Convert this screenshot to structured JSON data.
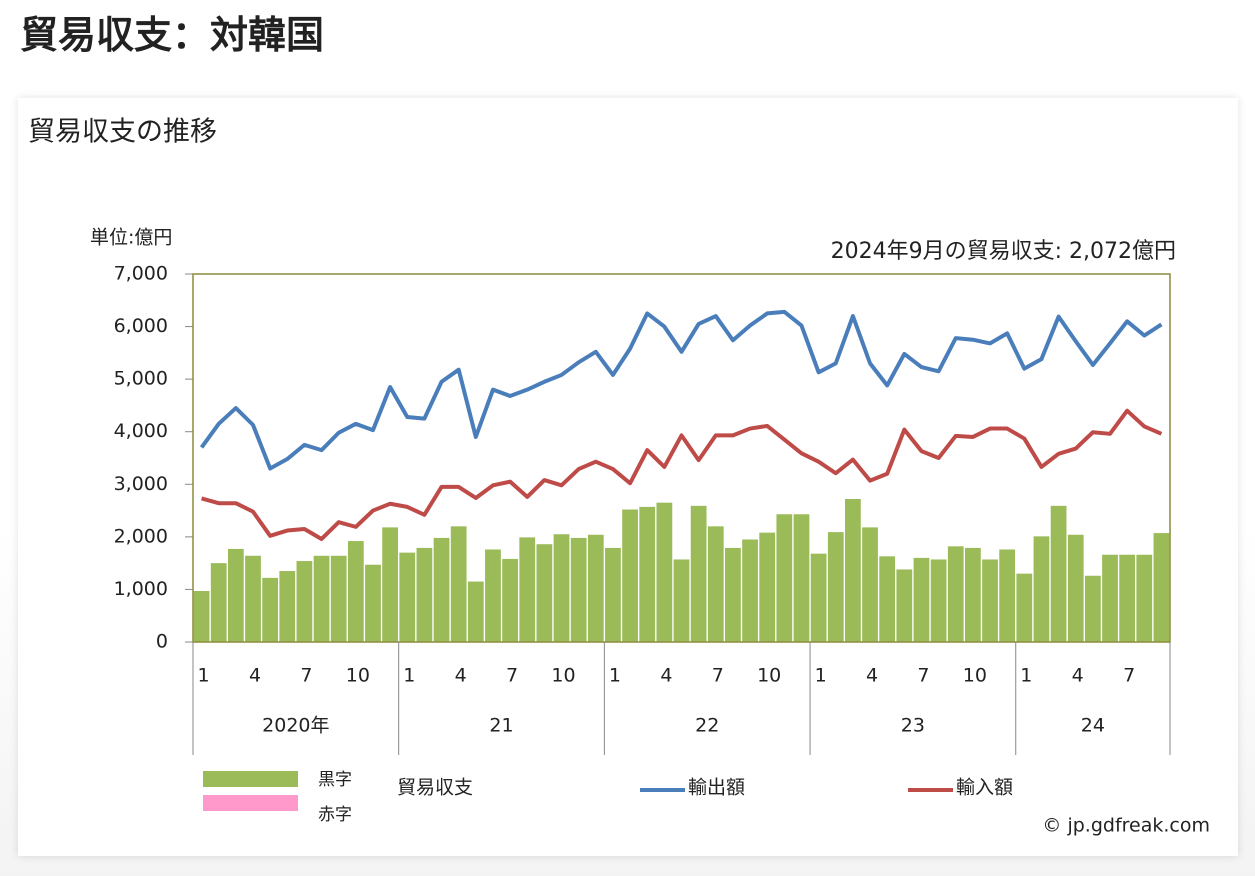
{
  "page_title": "貿易収支：対韓国",
  "chart_data": {
    "type": "combo",
    "title": "貿易収支の推移",
    "unit_label": "単位:億円",
    "annotation": "2024年9月の貿易収支: 2,072億円",
    "credit": "© jp.gdfreak.com",
    "categories": [
      "1",
      null,
      null,
      "4",
      null,
      null,
      "7",
      null,
      null,
      "10",
      null,
      null,
      "1",
      null,
      null,
      "4",
      null,
      null,
      "7",
      null,
      null,
      "10",
      null,
      null,
      "1",
      null,
      null,
      "4",
      null,
      null,
      "7",
      null,
      null,
      "10",
      null,
      null,
      "1",
      null,
      null,
      "4",
      null,
      null,
      "7",
      null,
      null,
      "10",
      null,
      null,
      "1",
      null,
      null,
      "4",
      null,
      null,
      "7",
      null,
      null
    ],
    "groups": [
      {
        "label": "2020年",
        "count": 12
      },
      {
        "label": "21",
        "count": 12
      },
      {
        "label": "22",
        "count": 12
      },
      {
        "label": "23",
        "count": 12
      },
      {
        "label": "24",
        "count": 9
      }
    ],
    "bar_legend": [
      {
        "label": "黒字",
        "color": "#9bbb59"
      },
      {
        "label": "赤字",
        "color": "#ff99cc"
      }
    ],
    "series": [
      {
        "name": "貿易収支",
        "type": "bar",
        "color": "#9bbb59",
        "negative_color": "#ff99cc",
        "values": [
          970,
          1500,
          1770,
          1640,
          1220,
          1350,
          1540,
          1640,
          1640,
          1920,
          1470,
          2180,
          1700,
          1790,
          1980,
          2200,
          1150,
          1760,
          1580,
          1990,
          1860,
          2050,
          1980,
          2040,
          1790,
          2520,
          2570,
          2650,
          1570,
          2590,
          2200,
          1790,
          1950,
          2080,
          2430,
          2430,
          1680,
          2090,
          2720,
          2180,
          1630,
          1380,
          1600,
          1570,
          1820,
          1790,
          1570,
          1760,
          1300,
          2010,
          2590,
          2040,
          1260,
          1660,
          1660,
          1660,
          2072
        ]
      },
      {
        "name": "輸出額",
        "type": "line",
        "color": "#4a7ebb",
        "values": [
          3700,
          4150,
          4450,
          4130,
          3300,
          3480,
          3750,
          3650,
          3980,
          4150,
          4030,
          4850,
          4280,
          4250,
          4950,
          5180,
          3900,
          4800,
          4680,
          4800,
          4950,
          5080,
          5320,
          5520,
          5080,
          5580,
          6250,
          6000,
          5520,
          6050,
          6200,
          5740,
          6020,
          6250,
          6280,
          6020,
          5130,
          5300,
          6200,
          5300,
          4880,
          5480,
          5230,
          5150,
          5780,
          5750,
          5680,
          5870,
          5200,
          5380,
          6190,
          5720,
          5270,
          5680,
          6100,
          5830,
          6040
        ]
      },
      {
        "name": "輸入額",
        "type": "line",
        "color": "#be4b48",
        "values": [
          2730,
          2640,
          2640,
          2480,
          2020,
          2120,
          2150,
          1960,
          2280,
          2190,
          2500,
          2630,
          2570,
          2420,
          2950,
          2950,
          2740,
          2980,
          3050,
          2760,
          3080,
          2980,
          3290,
          3430,
          3290,
          3020,
          3650,
          3330,
          3930,
          3460,
          3930,
          3930,
          4060,
          4110,
          3850,
          3590,
          3430,
          3210,
          3470,
          3070,
          3200,
          4040,
          3630,
          3500,
          3920,
          3900,
          4060,
          4060,
          3870,
          3330,
          3580,
          3680,
          3990,
          3960,
          4400,
          4100,
          3960
        ]
      }
    ],
    "ylim": [
      0,
      7000
    ],
    "yticks": [
      0,
      {
        "value": 1000,
        "label": "1,000"
      },
      {
        "value": 2000,
        "label": "2,000"
      },
      {
        "value": 3000,
        "label": "3,000"
      },
      {
        "value": 4000,
        "label": "4,000"
      },
      {
        "value": 5000,
        "label": "5,000"
      },
      {
        "value": 6000,
        "label": "6,000"
      },
      {
        "value": 7000,
        "label": "7,000"
      }
    ]
  }
}
